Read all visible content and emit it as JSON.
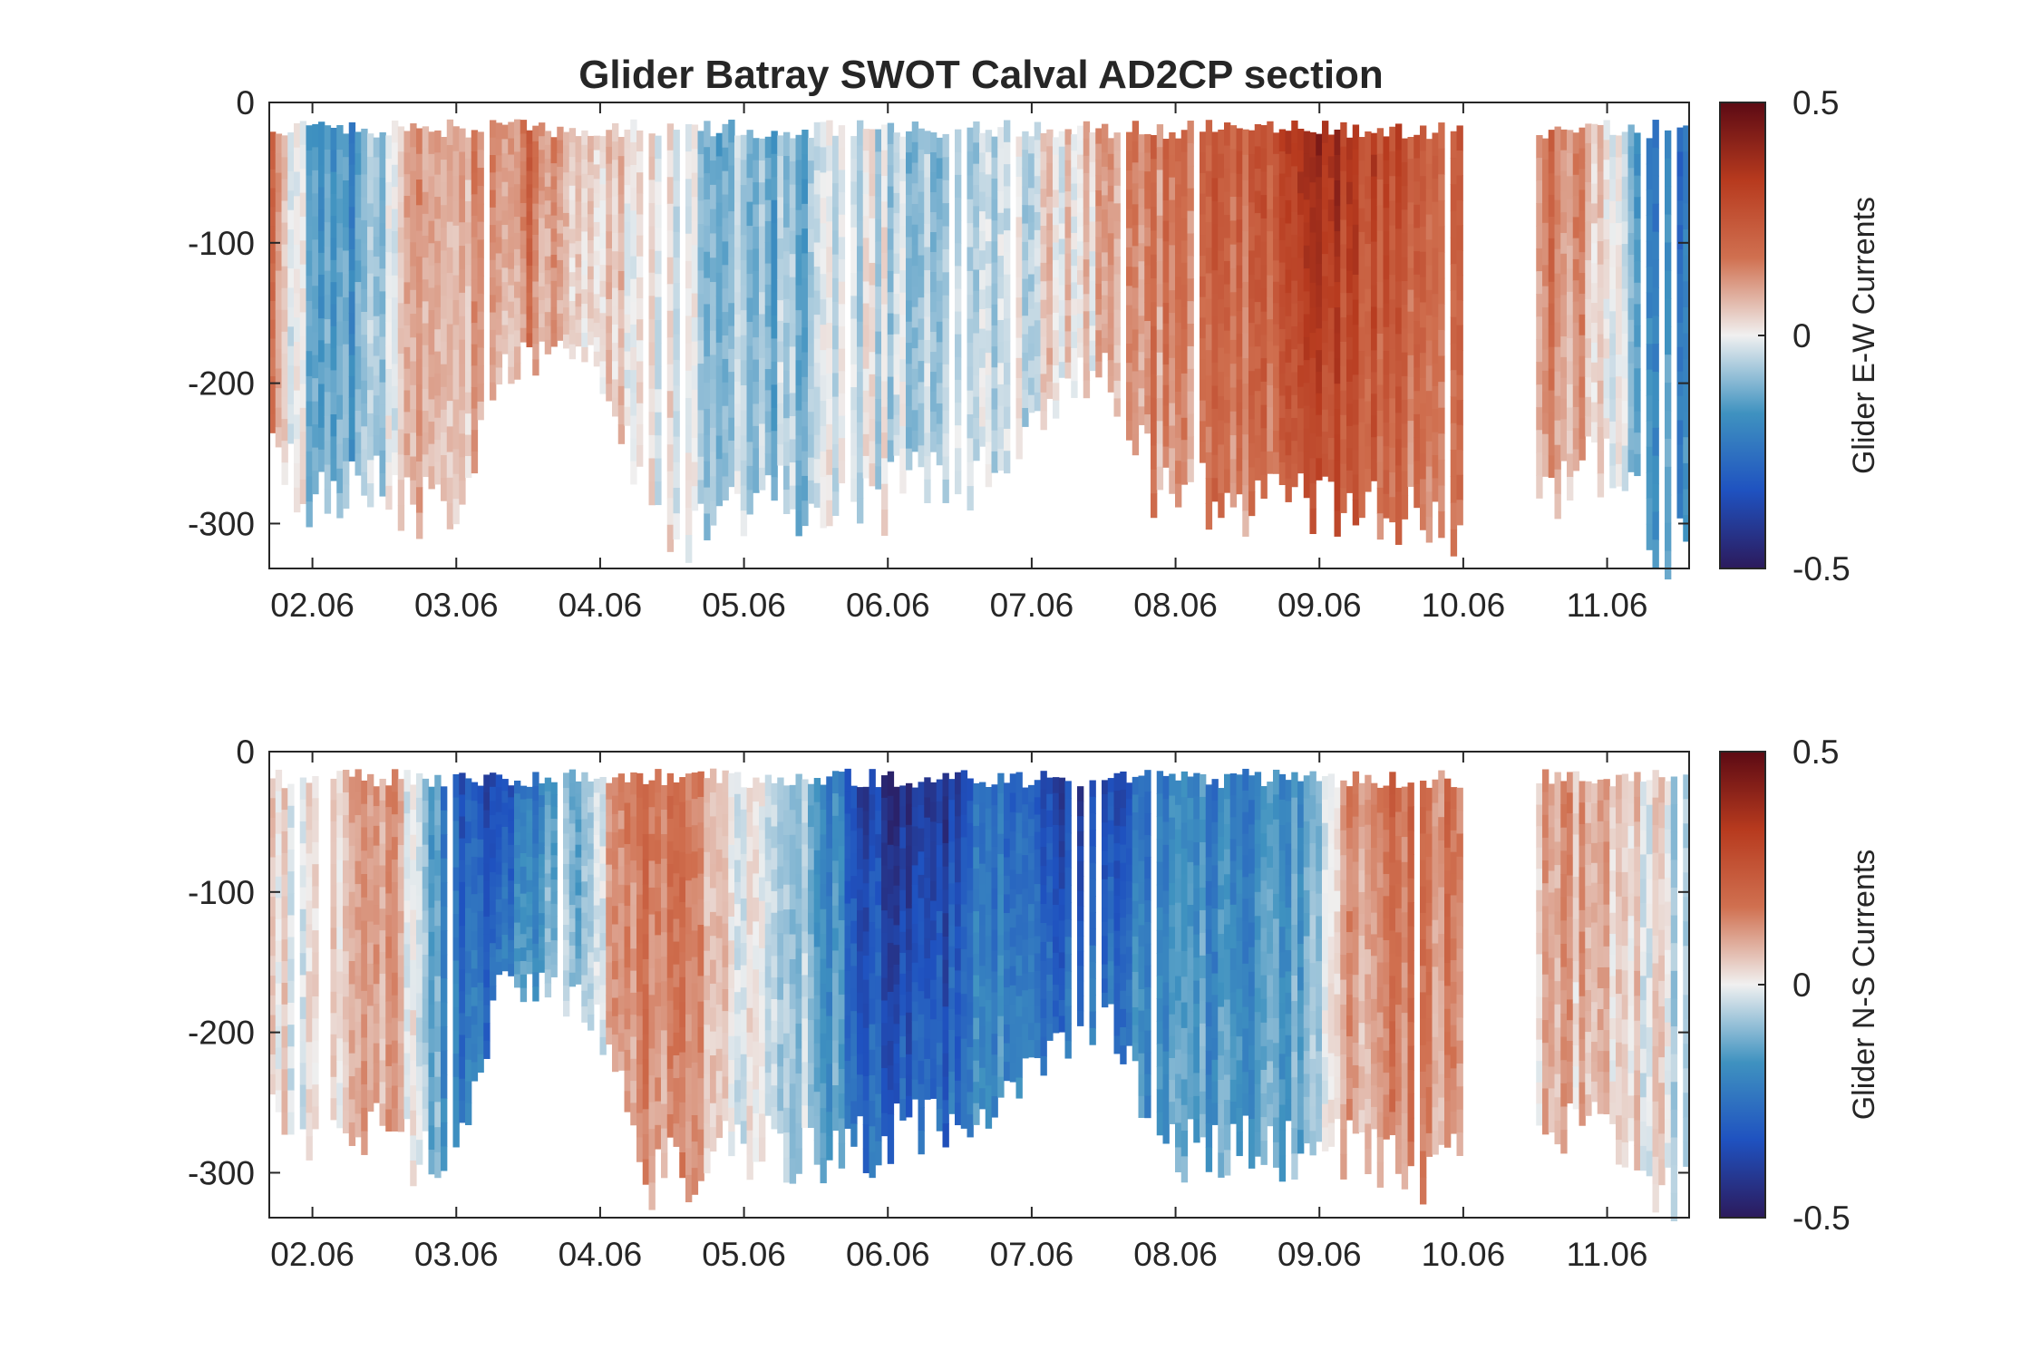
{
  "figure_title": "Glider Batray SWOT Calval AD2CP section",
  "chart_data": [
    {
      "type": "heatmap",
      "title": "Glider Batray SWOT Calval AD2CP section",
      "colorbar_label": "Glider E-W Currents",
      "x_ticks": [
        "02.06",
        "03.06",
        "04.06",
        "05.06",
        "06.06",
        "07.06",
        "08.06",
        "09.06",
        "10.06",
        "11.06"
      ],
      "x_range_days": [
        1.7,
        11.57
      ],
      "y_ticks": [
        0,
        -100,
        -200,
        -300
      ],
      "ylim": [
        -332,
        0
      ],
      "clim": [
        -0.5,
        0.5
      ],
      "colorbar_ticks": [
        "0.5",
        "0",
        "-0.5"
      ],
      "colormap": [
        "#2c1a5c",
        "#1f52c0",
        "#3f92c0",
        "#f0f0f0",
        "#d07050",
        "#b73a1e",
        "#5c0a14"
      ],
      "velocity_by_date": [
        {
          "day": 1.75,
          "v": 0.15
        },
        {
          "day": 2.0,
          "v": -0.12
        },
        {
          "day": 2.2,
          "v": -0.22
        },
        {
          "day": 2.45,
          "v": -0.08
        },
        {
          "day": 2.7,
          "v": 0.12
        },
        {
          "day": 3.0,
          "v": 0.1
        },
        {
          "day": 3.25,
          "v": 0.15
        },
        {
          "day": 3.55,
          "v": 0.2
        },
        {
          "day": 3.8,
          "v": 0.05
        },
        {
          "day": 4.1,
          "v": 0.04
        },
        {
          "day": 4.4,
          "v": 0.02
        },
        {
          "day": 4.7,
          "v": -0.08
        },
        {
          "day": 5.0,
          "v": -0.1
        },
        {
          "day": 5.3,
          "v": -0.12
        },
        {
          "day": 5.6,
          "v": -0.05
        },
        {
          "day": 5.9,
          "v": -0.03
        },
        {
          "day": 6.2,
          "v": -0.08
        },
        {
          "day": 6.5,
          "v": -0.12
        },
        {
          "day": 6.8,
          "v": -0.06
        },
        {
          "day": 7.1,
          "v": 0.02
        },
        {
          "day": 7.4,
          "v": 0.05
        },
        {
          "day": 7.8,
          "v": 0.15
        },
        {
          "day": 8.1,
          "v": 0.2
        },
        {
          "day": 8.4,
          "v": 0.22
        },
        {
          "day": 8.7,
          "v": 0.25
        },
        {
          "day": 9.0,
          "v": 0.38
        },
        {
          "day": 9.3,
          "v": 0.3
        },
        {
          "day": 9.6,
          "v": 0.25
        },
        {
          "day": 9.9,
          "v": 0.22
        },
        {
          "day": 10.55,
          "v": 0.18
        },
        {
          "day": 10.85,
          "v": 0.12
        },
        {
          "day": 11.1,
          "v": -0.05
        },
        {
          "day": 11.3,
          "v": -0.2
        },
        {
          "day": 11.55,
          "v": -0.25
        }
      ],
      "profile_depth_by_date": [
        {
          "day": 1.75,
          "depth": 260
        },
        {
          "day": 2.0,
          "depth": 305
        },
        {
          "day": 2.3,
          "depth": 285
        },
        {
          "day": 2.5,
          "depth": 295
        },
        {
          "day": 2.75,
          "depth": 312
        },
        {
          "day": 3.0,
          "depth": 310
        },
        {
          "day": 3.3,
          "depth": 210
        },
        {
          "day": 3.7,
          "depth": 180
        },
        {
          "day": 3.9,
          "depth": 195
        },
        {
          "day": 4.05,
          "depth": 225
        },
        {
          "day": 4.35,
          "depth": 320
        },
        {
          "day": 4.6,
          "depth": 320
        },
        {
          "day": 4.85,
          "depth": 305
        },
        {
          "day": 5.1,
          "depth": 305
        },
        {
          "day": 5.5,
          "depth": 300
        },
        {
          "day": 5.75,
          "depth": 300
        },
        {
          "day": 6.0,
          "depth": 300
        },
        {
          "day": 6.2,
          "depth": 280
        },
        {
          "day": 6.5,
          "depth": 295
        },
        {
          "day": 6.9,
          "depth": 260
        },
        {
          "day": 7.2,
          "depth": 220
        },
        {
          "day": 7.5,
          "depth": 200
        },
        {
          "day": 7.7,
          "depth": 240
        },
        {
          "day": 7.85,
          "depth": 290
        },
        {
          "day": 8.1,
          "depth": 300
        },
        {
          "day": 8.4,
          "depth": 305
        },
        {
          "day": 8.7,
          "depth": 300
        },
        {
          "day": 9.0,
          "depth": 300
        },
        {
          "day": 9.3,
          "depth": 310
        },
        {
          "day": 9.6,
          "depth": 310
        },
        {
          "day": 9.9,
          "depth": 318
        },
        {
          "day": 10.55,
          "depth": 310
        },
        {
          "day": 10.85,
          "depth": 270
        },
        {
          "day": 11.15,
          "depth": 290
        },
        {
          "day": 11.35,
          "depth": 330
        },
        {
          "day": 11.55,
          "depth": 330
        }
      ]
    },
    {
      "type": "heatmap",
      "title": "",
      "colorbar_label": "Glider N-S Currents",
      "x_ticks": [
        "02.06",
        "03.06",
        "04.06",
        "05.06",
        "06.06",
        "07.06",
        "08.06",
        "09.06",
        "10.06",
        "11.06"
      ],
      "x_range_days": [
        1.7,
        11.57
      ],
      "y_ticks": [
        0,
        -100,
        -200,
        -300
      ],
      "ylim": [
        -332,
        0
      ],
      "clim": [
        -0.5,
        0.5
      ],
      "colorbar_ticks": [
        "0.5",
        "0",
        "-0.5"
      ],
      "colormap": [
        "#2c1a5c",
        "#1f52c0",
        "#3f92c0",
        "#f0f0f0",
        "#d07050",
        "#b73a1e",
        "#5c0a14"
      ],
      "velocity_by_date": [
        {
          "day": 1.75,
          "v": 0.0
        },
        {
          "day": 2.0,
          "v": 0.05
        },
        {
          "day": 2.3,
          "v": 0.08
        },
        {
          "day": 2.55,
          "v": 0.12
        },
        {
          "day": 2.8,
          "v": -0.1
        },
        {
          "day": 3.0,
          "v": -0.3
        },
        {
          "day": 3.3,
          "v": -0.35
        },
        {
          "day": 3.6,
          "v": -0.2
        },
        {
          "day": 3.9,
          "v": -0.08
        },
        {
          "day": 4.1,
          "v": 0.12
        },
        {
          "day": 4.3,
          "v": 0.2
        },
        {
          "day": 4.55,
          "v": 0.15
        },
        {
          "day": 4.85,
          "v": 0.06
        },
        {
          "day": 5.1,
          "v": 0.0
        },
        {
          "day": 5.35,
          "v": -0.08
        },
        {
          "day": 5.6,
          "v": -0.2
        },
        {
          "day": 5.85,
          "v": -0.38
        },
        {
          "day": 6.1,
          "v": -0.45
        },
        {
          "day": 6.35,
          "v": -0.42
        },
        {
          "day": 6.6,
          "v": -0.3
        },
        {
          "day": 6.85,
          "v": -0.25
        },
        {
          "day": 7.1,
          "v": -0.35
        },
        {
          "day": 7.35,
          "v": -0.4
        },
        {
          "day": 7.6,
          "v": -0.35
        },
        {
          "day": 7.85,
          "v": -0.22
        },
        {
          "day": 8.1,
          "v": -0.2
        },
        {
          "day": 8.4,
          "v": -0.22
        },
        {
          "day": 8.7,
          "v": -0.2
        },
        {
          "day": 8.95,
          "v": -0.15
        },
        {
          "day": 9.2,
          "v": 0.1
        },
        {
          "day": 9.5,
          "v": 0.18
        },
        {
          "day": 9.8,
          "v": 0.15
        },
        {
          "day": 10.55,
          "v": 0.1
        },
        {
          "day": 10.9,
          "v": 0.08
        },
        {
          "day": 11.2,
          "v": 0.03
        },
        {
          "day": 11.55,
          "v": -0.03
        }
      ],
      "profile_depth_by_date": [
        {
          "day": 1.75,
          "depth": 260
        },
        {
          "day": 2.0,
          "depth": 305
        },
        {
          "day": 2.3,
          "depth": 285
        },
        {
          "day": 2.5,
          "depth": 295
        },
        {
          "day": 2.75,
          "depth": 312
        },
        {
          "day": 3.0,
          "depth": 310
        },
        {
          "day": 3.3,
          "depth": 180
        },
        {
          "day": 3.7,
          "depth": 180
        },
        {
          "day": 3.9,
          "depth": 195
        },
        {
          "day": 4.05,
          "depth": 225
        },
        {
          "day": 4.35,
          "depth": 320
        },
        {
          "day": 4.6,
          "depth": 320
        },
        {
          "day": 4.85,
          "depth": 305
        },
        {
          "day": 5.1,
          "depth": 305
        },
        {
          "day": 5.5,
          "depth": 300
        },
        {
          "day": 5.75,
          "depth": 300
        },
        {
          "day": 6.0,
          "depth": 300
        },
        {
          "day": 6.2,
          "depth": 280
        },
        {
          "day": 6.5,
          "depth": 295
        },
        {
          "day": 6.9,
          "depth": 260
        },
        {
          "day": 7.2,
          "depth": 220
        },
        {
          "day": 7.5,
          "depth": 200
        },
        {
          "day": 7.7,
          "depth": 240
        },
        {
          "day": 7.85,
          "depth": 290
        },
        {
          "day": 8.1,
          "depth": 300
        },
        {
          "day": 8.4,
          "depth": 305
        },
        {
          "day": 8.7,
          "depth": 300
        },
        {
          "day": 9.0,
          "depth": 300
        },
        {
          "day": 9.3,
          "depth": 310
        },
        {
          "day": 9.6,
          "depth": 310
        },
        {
          "day": 9.9,
          "depth": 318
        },
        {
          "day": 10.55,
          "depth": 310
        },
        {
          "day": 10.85,
          "depth": 270
        },
        {
          "day": 11.15,
          "depth": 290
        },
        {
          "day": 11.35,
          "depth": 330
        },
        {
          "day": 11.55,
          "depth": 330
        }
      ]
    }
  ]
}
